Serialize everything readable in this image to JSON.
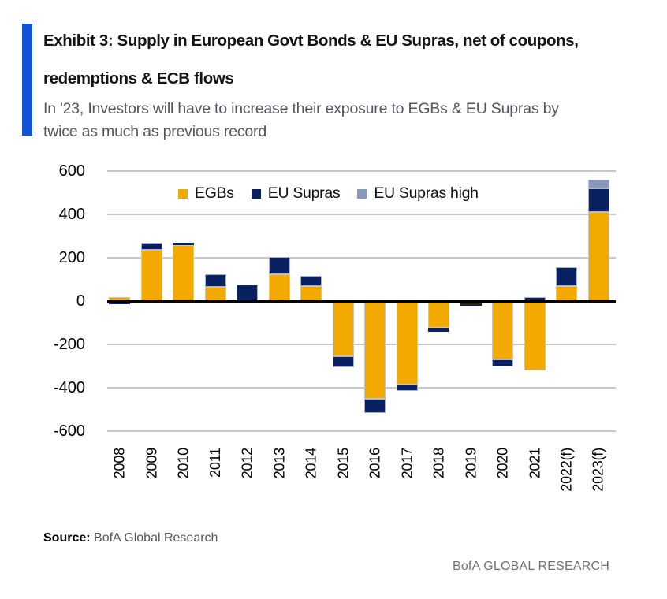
{
  "exhibit": {
    "title_line1": "Exhibit 3: Supply in European Govt Bonds & EU Supras, net of coupons,",
    "title_line2": "redemptions & ECB flows",
    "subtitle_line1": "In '23, Investors will have to increase their exposure to EGBs & EU Supras by",
    "subtitle_line2": "twice as much as previous record",
    "accent_color": "#1254D6"
  },
  "chart_data": {
    "type": "bar",
    "stacked": true,
    "title": "",
    "xlabel": "",
    "ylabel": "",
    "ylim": [
      -600,
      600
    ],
    "yticks": [
      600,
      400,
      200,
      0,
      -200,
      -400,
      -600
    ],
    "grid": "horizontal",
    "gridline_color": "#C8C8C8",
    "axis_color": "#000000",
    "legend_position": "top-inside",
    "categories": [
      "2008",
      "2009",
      "2010",
      "2011",
      "2012",
      "2013",
      "2014",
      "2015",
      "2016",
      "2017",
      "2018",
      "2019",
      "2020",
      "2021",
      "2022(f)",
      "2023(f)"
    ],
    "series": [
      {
        "name": "EGBs",
        "color": "#F2A900",
        "values": [
          20,
          235,
          260,
          65,
          0,
          125,
          70,
          -255,
          -450,
          -385,
          -125,
          -10,
          -270,
          -320,
          70,
          410
        ]
      },
      {
        "name": "EU Supras",
        "color": "#0A2161",
        "values": [
          -15,
          35,
          10,
          60,
          75,
          80,
          45,
          -50,
          -65,
          -30,
          -15,
          -10,
          -30,
          20,
          85,
          110
        ]
      },
      {
        "name": "EU Supras high",
        "color": "#8899BB",
        "values": [
          0,
          0,
          0,
          0,
          0,
          0,
          0,
          0,
          0,
          0,
          0,
          0,
          0,
          0,
          0,
          40
        ]
      }
    ]
  },
  "footer": {
    "source_label": "Source:",
    "source_text": "BofA Global Research",
    "brand": "BofA GLOBAL RESEARCH"
  }
}
